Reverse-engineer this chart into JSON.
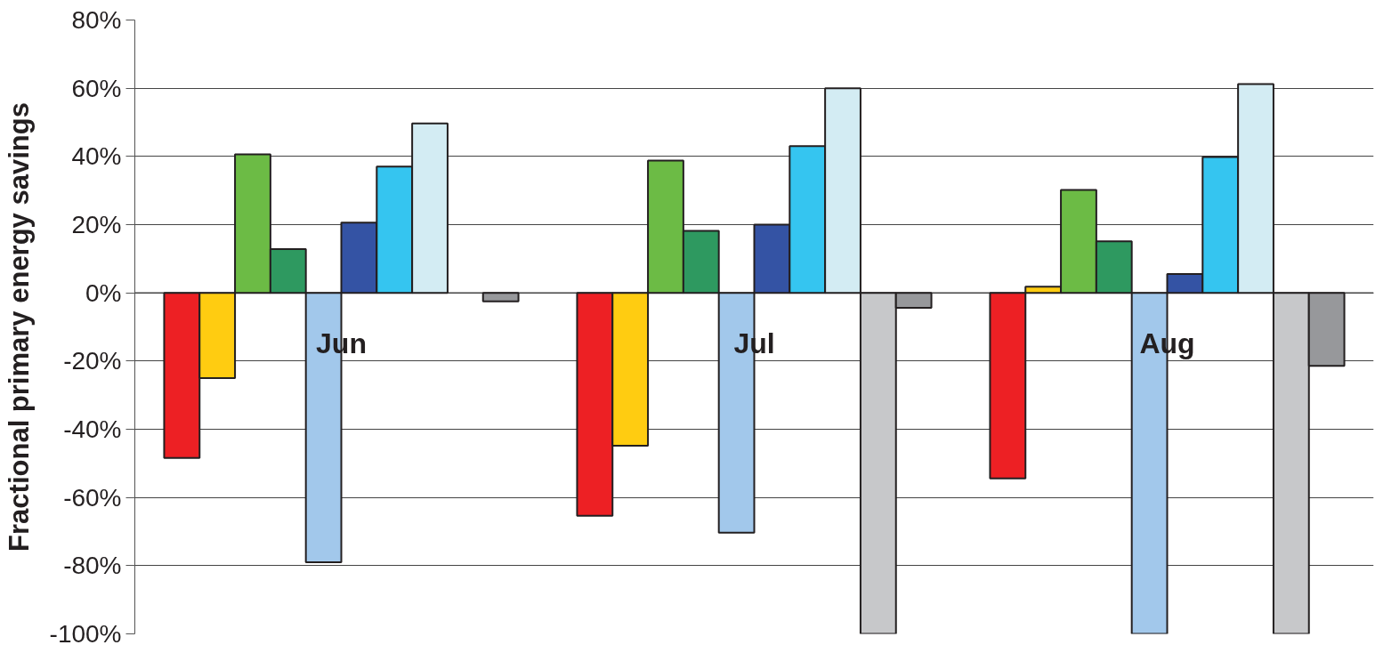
{
  "chart_data": {
    "type": "bar",
    "ylabel": "Fractional primary energy savings",
    "categories": [
      "Jun",
      "Jul",
      "Aug"
    ],
    "series": [
      {
        "color": "#ed2024",
        "values": [
          -48.4,
          -65.4,
          -54.4
        ]
      },
      {
        "color": "#ffcc11",
        "values": [
          -25,
          -44.8,
          1.8
        ]
      },
      {
        "color": "#6cbb45",
        "values": [
          40.6,
          38.8,
          30.2
        ]
      },
      {
        "color": "#2e9960",
        "values": [
          12.8,
          18.2,
          15.1
        ]
      },
      {
        "color": "#a2c8eb",
        "values": [
          -79,
          -70.3,
          -100
        ]
      },
      {
        "color": "#3453a4",
        "values": [
          20.6,
          20,
          5.5
        ]
      },
      {
        "color": "#35c5f0",
        "values": [
          37,
          43,
          39.8
        ]
      },
      {
        "color": "#d3ecf3",
        "values": [
          49.7,
          60,
          61.2
        ]
      },
      {
        "color": "#c7c8ca",
        "values": [
          null,
          -100,
          -100
        ]
      },
      {
        "color": "#97989b",
        "values": [
          -2.5,
          -4.4,
          -21.4
        ]
      }
    ],
    "ylim": [
      -100,
      80
    ],
    "yticks": [
      {
        "value": -100,
        "label": "-100%"
      },
      {
        "value": -80,
        "label": "-80%"
      },
      {
        "value": -60,
        "label": "-60%"
      },
      {
        "value": -40,
        "label": "-40%"
      },
      {
        "value": -20,
        "label": "-20%"
      },
      {
        "value": 0,
        "label": "0%"
      },
      {
        "value": 20,
        "label": "20%"
      },
      {
        "value": 40,
        "label": "40%"
      },
      {
        "value": 60,
        "label": "60%"
      },
      {
        "value": 80,
        "label": "80%"
      }
    ],
    "grid": "y"
  }
}
